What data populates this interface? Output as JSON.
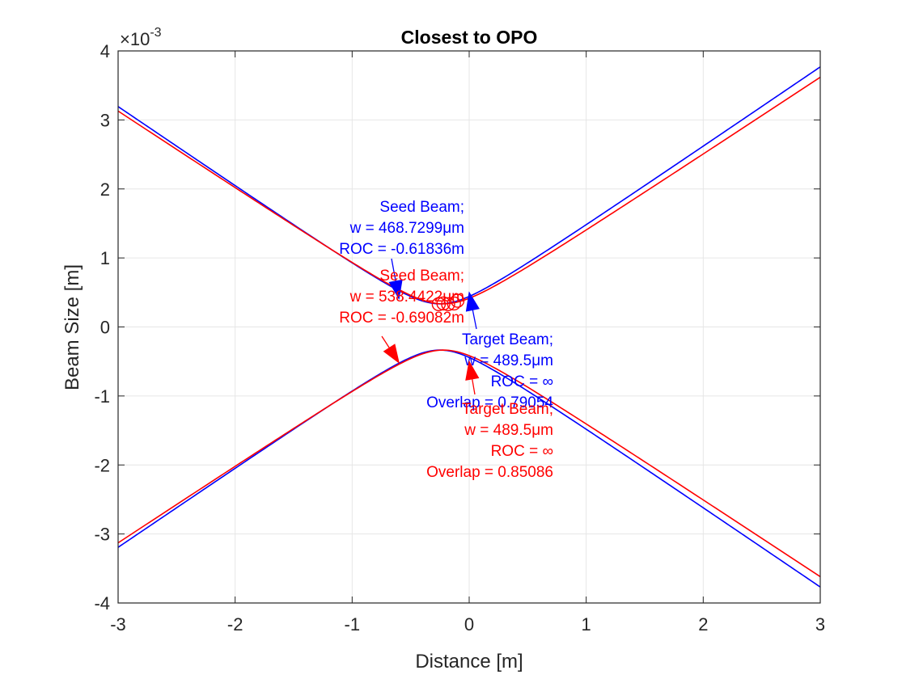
{
  "chart_data": {
    "type": "line",
    "title": "Closest to OPO",
    "xlabel": "Distance [m]",
    "ylabel": "Beam Size [m]",
    "exponent_label": "×10",
    "exponent_power": "-3",
    "xlim": [
      -3,
      3
    ],
    "ylim": [
      -0.004,
      0.004
    ],
    "xticks": [
      -3,
      -2,
      -1,
      0,
      1,
      2,
      3
    ],
    "yticks": [
      -4,
      -3,
      -2,
      -1,
      0,
      1,
      2,
      3,
      4
    ],
    "grid": true,
    "colors": {
      "blue": "#0000FF",
      "red": "#FF0000",
      "axis": "#262626",
      "grid": "#e6e6e6"
    },
    "series": [
      {
        "color": "#0000FF",
        "waist_position_m": -0.25,
        "waist_radius_m": 0.000335,
        "far_field_divergence": 0.001155,
        "x": [
          -3,
          -2,
          -1,
          -0.5,
          -0.25,
          0,
          0.5,
          1,
          2,
          3
        ],
        "y": [
          0.002878,
          0.00203,
          0.00093,
          0.000421,
          0.000335,
          0.000421,
          0.00093,
          0.001491,
          0.002635,
          0.003436
        ]
      },
      {
        "color": "#FF0000",
        "waist_position_m": -0.22,
        "waist_radius_m": 0.000335,
        "far_field_divergence": 0.001119,
        "x": [
          -3,
          -2,
          -1,
          -0.5,
          -0.22,
          0,
          0.5,
          1,
          2,
          3
        ],
        "y": [
          0.002843,
          0.001862,
          0.000985,
          0.000452,
          0.000335,
          0.000406,
          0.000916,
          0.001402,
          0.002312,
          0.003186
        ]
      }
    ],
    "annotations": [
      {
        "name": "seed-beam-blue",
        "color": "#0000FF",
        "lines": [
          "Seed Beam;",
          "w = 468.7299μm",
          "ROC = -0.61836m"
        ],
        "arrow_to": [
          -0.6,
          0.00041
        ]
      },
      {
        "name": "seed-beam-red",
        "color": "#FF0000",
        "lines": [
          "Seed Beam;",
          "w = 538.4422μm",
          "ROC = -0.69082m"
        ],
        "arrow_to": [
          -0.6,
          -0.00052
        ]
      },
      {
        "name": "target-beam-blue",
        "color": "#0000FF",
        "lines": [
          "Target Beam;",
          "w = 489.5μm",
          "ROC = ∞",
          "Overlap = 0.79054"
        ],
        "arrow_to": [
          0.0,
          0.0005
        ]
      },
      {
        "name": "target-beam-red",
        "color": "#FF0000",
        "lines": [
          "Target Beam;",
          "w = 489.5μm",
          "ROC = ∞",
          "Overlap = 0.85086"
        ],
        "arrow_to": [
          0.0,
          -0.0005
        ]
      }
    ],
    "circle_markers": [
      {
        "x": -0.26,
        "y": 0.00033
      },
      {
        "x": -0.22,
        "y": 0.00034
      },
      {
        "x": -0.18,
        "y": 0.00033
      },
      {
        "x": -0.13,
        "y": 0.00034
      },
      {
        "x": -0.1,
        "y": 0.00038
      }
    ]
  }
}
